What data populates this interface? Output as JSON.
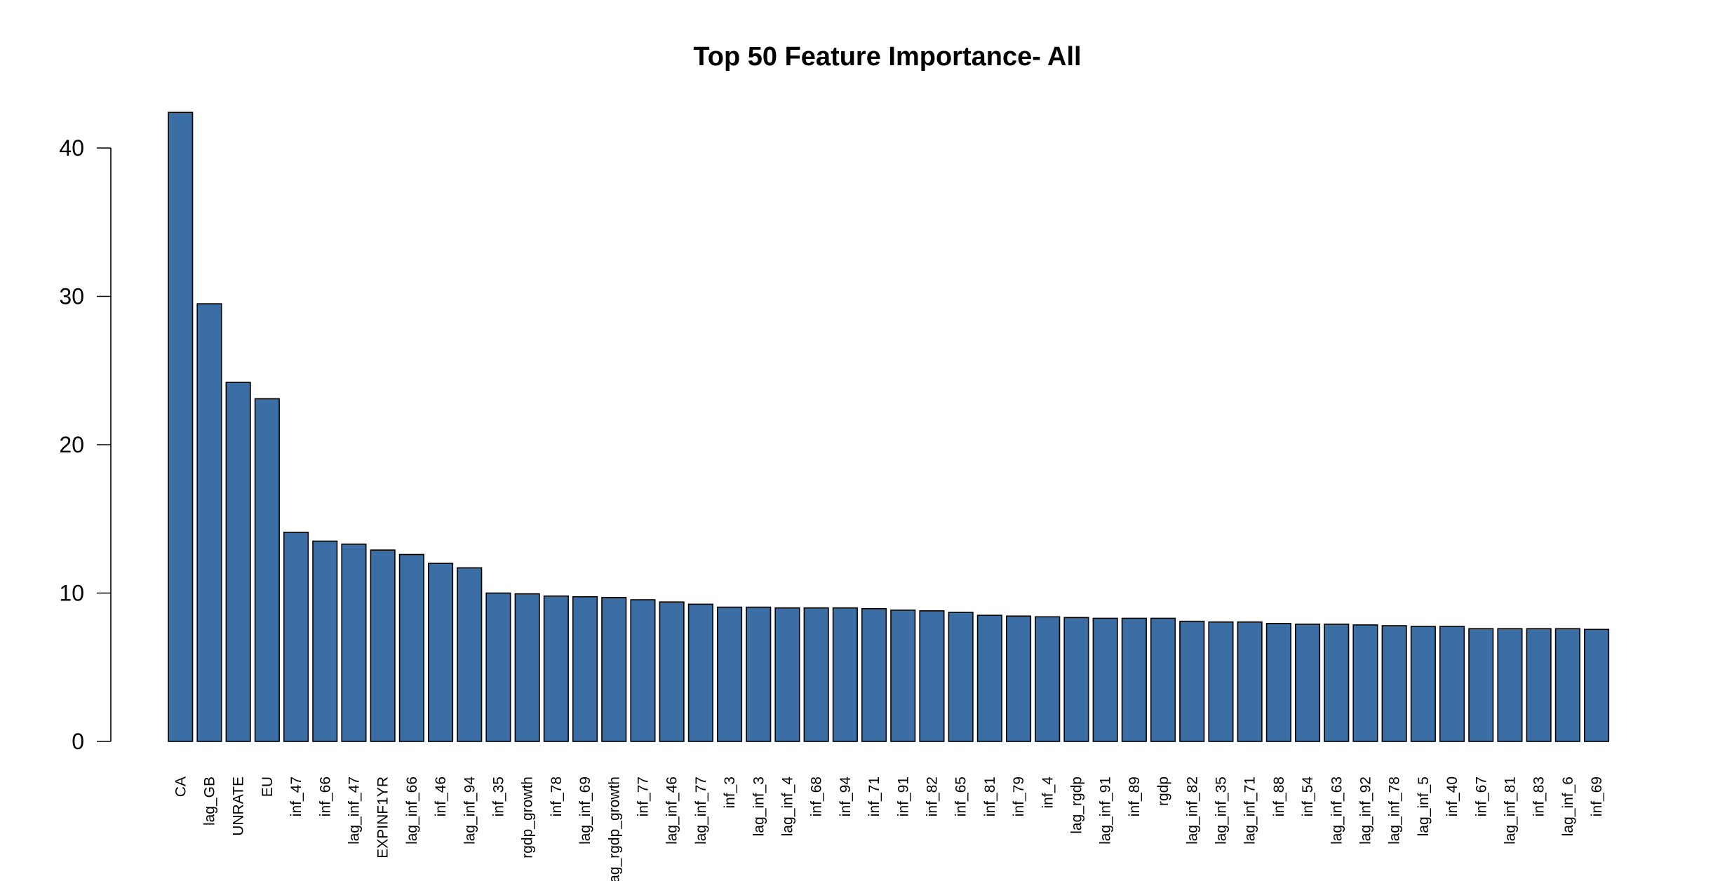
{
  "chart_data": {
    "type": "bar",
    "title": "Top 50 Feature Importance- All",
    "xlabel": "",
    "ylabel": "",
    "ylim": [
      0,
      42.5
    ],
    "yticks": [
      0,
      10,
      20,
      30,
      40
    ],
    "bar_color": "#3a6ea5",
    "grid": false,
    "legend": "none",
    "categories": [
      "CA",
      "lag_GB",
      "UNRATE",
      "EU",
      "inf_47",
      "inf_66",
      "lag_inf_47",
      "EXPINF1YR",
      "lag_inf_66",
      "inf_46",
      "lag_inf_94",
      "inf_35",
      "rgdp_growth",
      "inf_78",
      "lag_inf_69",
      "lag_rgdp_growth",
      "inf_77",
      "lag_inf_46",
      "lag_inf_77",
      "inf_3",
      "lag_inf_3",
      "lag_inf_4",
      "inf_68",
      "inf_94",
      "inf_71",
      "inf_91",
      "inf_82",
      "inf_65",
      "inf_81",
      "inf_79",
      "inf_4",
      "lag_rgdp",
      "lag_inf_91",
      "inf_89",
      "rgdp",
      "lag_inf_82",
      "lag_inf_35",
      "lag_inf_71",
      "inf_88",
      "inf_54",
      "lag_inf_63",
      "lag_inf_92",
      "lag_inf_78",
      "lag_inf_5",
      "inf_40",
      "inf_67",
      "lag_inf_81",
      "inf_83",
      "lag_inf_6",
      "inf_69"
    ],
    "values": [
      42.4,
      29.5,
      24.2,
      23.1,
      14.1,
      13.5,
      13.3,
      12.9,
      12.6,
      12.0,
      11.7,
      10.0,
      9.95,
      9.8,
      9.75,
      9.7,
      9.55,
      9.4,
      9.25,
      9.05,
      9.05,
      9.0,
      9.0,
      9.0,
      8.95,
      8.85,
      8.8,
      8.7,
      8.5,
      8.45,
      8.4,
      8.35,
      8.3,
      8.3,
      8.3,
      8.1,
      8.05,
      8.05,
      7.95,
      7.9,
      7.9,
      7.85,
      7.8,
      7.75,
      7.75,
      7.6,
      7.6,
      7.6,
      7.6,
      7.55
    ]
  }
}
